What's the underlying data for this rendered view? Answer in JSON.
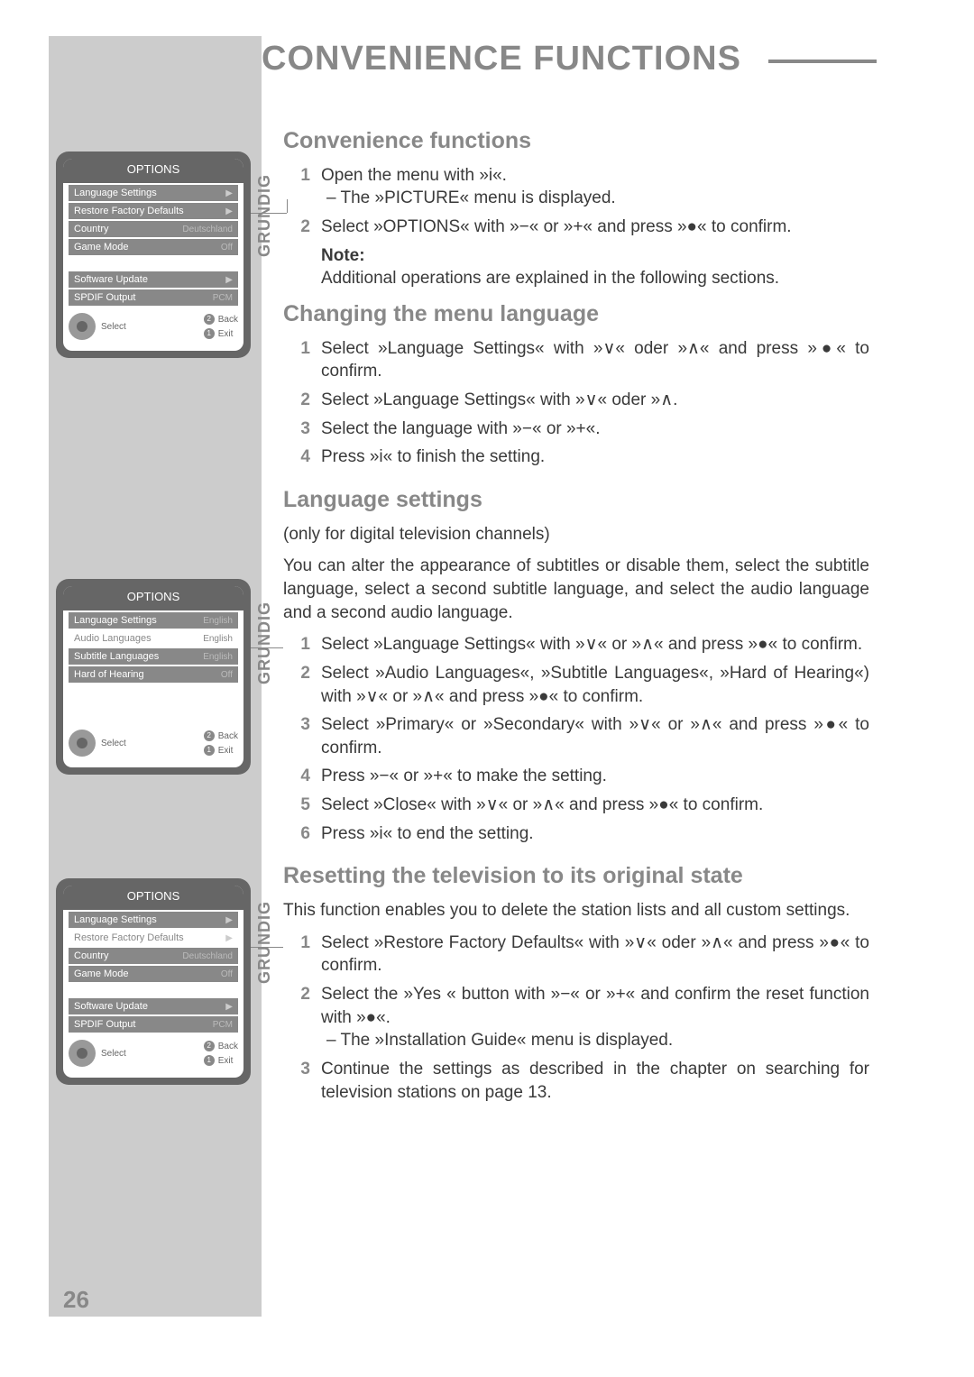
{
  "page_number": "26",
  "header": "CONVENIENCE FUNCTIONS",
  "brand": "GRUNDIG",
  "sections": {
    "s1_title": "Convenience functions",
    "s1_step1": "Open the menu with »i«.",
    "s1_step1_sub": "– The »PICTURE« menu is displayed.",
    "s1_step2": "Select »OPTIONS« with »−« or »+« and press »●« to confirm.",
    "note_label": "Note:",
    "note_body": "Additional operations are explained in the following sections.",
    "s2_title": "Changing the menu language",
    "s2_step1": "Select »Language Settings« with »∨« oder »∧« and press »●« to confirm.",
    "s2_step2": "Select »Language Settings« with »∨« oder »∧.",
    "s2_step3": "Select the language with »−« or »+«.",
    "s2_step4": "Press »i« to finish the setting.",
    "s3_title": "Language settings",
    "s3_intro": "(only for digital television channels)",
    "s3_para": "You can alter the appearance of subtitles or disable them, select the subtitle language, select a second subtitle language, and select the audio language and a second audio language.",
    "s3_step1": "Select »Language Settings« with »∨« or »∧« and press »●« to confirm.",
    "s3_step2": "Select »Audio Languages«, »Subtitle Languages«, »Hard of Hearing«) with »∨« or »∧« and press »●« to confirm.",
    "s3_step3": "Select »Primary« or »Secondary« with »∨« or »∧« and press »●« to confirm.",
    "s3_step4": "Press »−« or »+« to make the setting.",
    "s3_step5": "Select »Close« with »∨« or »∧« and press »●« to confirm.",
    "s3_step6": "Press »i« to end the setting.",
    "s4_title": "Resetting the television to its original state",
    "s4_para": "This function enables you to delete the station lists and all custom settings.",
    "s4_step1": "Select »Restore Factory Defaults« with »∨« oder »∧« and press »●« to confirm.",
    "s4_step2": "Select the »Yes « button with »−« or »+« and confirm the reset function with »●«.",
    "s4_step2_sub": "– The »Installation Guide« menu is displayed.",
    "s4_step3": "Continue the settings as described in the chapter on searching for television stations on page 13."
  },
  "menus": {
    "title": "OPTIONS",
    "footer_select": "Select",
    "footer_back": "Back",
    "footer_exit": "Exit",
    "menu1": {
      "rows": [
        {
          "label": "Language Settings",
          "val": "",
          "arrow": true,
          "sel": false
        },
        {
          "label": "Restore Factory Defaults",
          "val": "",
          "arrow": true,
          "sel": false
        },
        {
          "label": "Country",
          "val": "Deutschland",
          "arrow": false,
          "sel": false
        },
        {
          "label": "Game Mode",
          "val": "Off",
          "arrow": false,
          "sel": false
        }
      ],
      "rows2": [
        {
          "label": "Software Update",
          "val": "",
          "arrow": true,
          "sel": false
        },
        {
          "label": "SPDIF Output",
          "val": "PCM",
          "arrow": false,
          "sel": false
        }
      ]
    },
    "menu2": {
      "rows": [
        {
          "label": "Language Settings",
          "val": "English",
          "arrow": false,
          "sel": false
        },
        {
          "label": "Audio Languages",
          "val": "English",
          "arrow": false,
          "sel": true
        },
        {
          "label": "Subtitle Languages",
          "val": "English",
          "arrow": false,
          "sel": false
        },
        {
          "label": "Hard of Hearing",
          "val": "Off",
          "arrow": false,
          "sel": false
        }
      ]
    },
    "menu3": {
      "rows": [
        {
          "label": "Language Settings",
          "val": "",
          "arrow": true,
          "sel": false
        },
        {
          "label": "Restore Factory Defaults",
          "val": "",
          "arrow": true,
          "sel": true
        },
        {
          "label": "Country",
          "val": "Deutschland",
          "arrow": false,
          "sel": false
        },
        {
          "label": "Game Mode",
          "val": "Off",
          "arrow": false,
          "sel": false
        }
      ],
      "rows2": [
        {
          "label": "Software Update",
          "val": "",
          "arrow": true,
          "sel": false
        },
        {
          "label": "SPDIF Output",
          "val": "PCM",
          "arrow": false,
          "sel": false
        }
      ]
    }
  }
}
